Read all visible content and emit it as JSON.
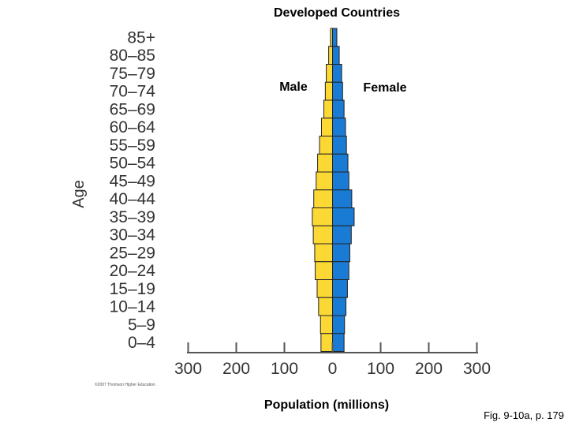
{
  "chart_data": {
    "type": "bar",
    "subtype": "population-pyramid",
    "title": "Developed Countries",
    "xlabel": "Population (millions)",
    "ylabel": "Age",
    "categories": [
      "85+",
      "80–85",
      "75–79",
      "70–74",
      "65–69",
      "60–64",
      "55–59",
      "50–54",
      "45–49",
      "40–44",
      "35–39",
      "30–34",
      "25–29",
      "20–24",
      "15–19",
      "10–14",
      "5–9",
      "0–4"
    ],
    "series": [
      {
        "name": "Male",
        "color": "#fcd835",
        "values": [
          4,
          8,
          13,
          15,
          18,
          23,
          27,
          31,
          34,
          39,
          42,
          40,
          37,
          36,
          32,
          29,
          25,
          24
        ]
      },
      {
        "name": "Female",
        "color": "#1a7bd4",
        "values": [
          9,
          14,
          19,
          21,
          24,
          27,
          29,
          32,
          34,
          40,
          45,
          39,
          36,
          34,
          31,
          28,
          25,
          24
        ]
      }
    ],
    "xticks": [
      300,
      200,
      100,
      0,
      100,
      200,
      300
    ],
    "xlim": [
      -300,
      300
    ],
    "copyright": "©2007 Thomson Higher Education",
    "caption": "Fig. 9-10a, p. 179"
  }
}
